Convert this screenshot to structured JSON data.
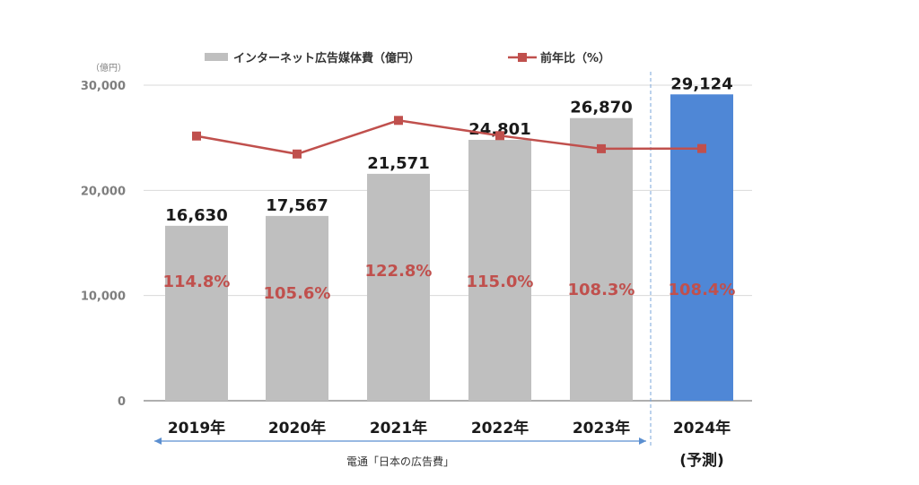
{
  "chart_data": {
    "type": "bar",
    "y_unit_label": "（億円）",
    "categories": [
      "2019年",
      "2020年",
      "2021年",
      "2022年",
      "2023年",
      "2024年"
    ],
    "forecast_note": "(予測)",
    "ylim": [
      0,
      30000
    ],
    "y_ticks": [
      "0",
      "10,000",
      "20,000",
      "30,000"
    ],
    "grid": true,
    "legend_position": "top",
    "series": [
      {
        "name": "インターネット広告媒体費（億円）",
        "kind": "bar",
        "values": [
          16630,
          17567,
          21571,
          24801,
          26870,
          29124
        ],
        "value_labels": [
          "16,630",
          "17,567",
          "21,571",
          "24,801",
          "26,870",
          "29,124"
        ],
        "color": "#bfbfbf",
        "forecast_color": "#4f87d6"
      },
      {
        "name": "前年比（%）",
        "kind": "line",
        "values": [
          114.8,
          105.6,
          122.8,
          115.0,
          108.3,
          108.4
        ],
        "value_labels": [
          "114.8%",
          "105.6%",
          "122.8%",
          "115.0%",
          "108.3%",
          "108.4%"
        ],
        "color": "#c0504d"
      }
    ],
    "source_note": "電通「日本の広告費」"
  }
}
